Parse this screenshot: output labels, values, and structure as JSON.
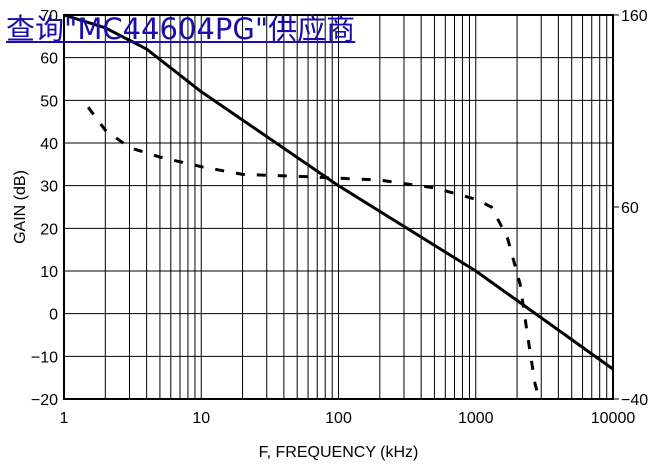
{
  "link_text": "查询\"MC44604PG\"供应商",
  "chart_data": {
    "type": "line",
    "xlabel": "F, FREQUENCY (kHz)",
    "ylabel": "GAIN (dB)",
    "x_scale": "log",
    "xlim": [
      1,
      10000
    ],
    "ylim": [
      -20,
      70
    ],
    "y2lim": [
      -40,
      160
    ],
    "grid": true,
    "x_ticks": [
      {
        "value": 1,
        "label": "1"
      },
      {
        "value": 10,
        "label": "10"
      },
      {
        "value": 100,
        "label": "100"
      },
      {
        "value": 1000,
        "label": "1000"
      },
      {
        "value": 10000,
        "label": "10000"
      }
    ],
    "y_ticks": [
      {
        "value": -20,
        "label": "−20"
      },
      {
        "value": -10,
        "label": "−10"
      },
      {
        "value": 0,
        "label": "0"
      },
      {
        "value": 10,
        "label": "10"
      },
      {
        "value": 20,
        "label": "20"
      },
      {
        "value": 30,
        "label": "30"
      },
      {
        "value": 40,
        "label": "40"
      },
      {
        "value": 50,
        "label": "50"
      },
      {
        "value": 60,
        "label": "60"
      },
      {
        "value": 70,
        "label": "70"
      }
    ],
    "y2_ticks": [
      {
        "value": 160,
        "label": "160"
      },
      {
        "value": 60,
        "label": "60"
      },
      {
        "value": -40,
        "label": "−40"
      }
    ],
    "series": [
      {
        "style": "solid",
        "axis": "left",
        "points": [
          [
            1,
            70
          ],
          [
            2,
            67
          ],
          [
            4,
            62
          ],
          [
            10,
            52
          ],
          [
            100,
            30
          ],
          [
            1000,
            10
          ],
          [
            10000,
            -13
          ]
        ]
      },
      {
        "style": "dashed",
        "axis": "right",
        "points": [
          [
            1.5,
            112
          ],
          [
            2,
            100
          ],
          [
            3,
            91
          ],
          [
            5,
            86
          ],
          [
            10,
            81
          ],
          [
            20,
            77
          ],
          [
            50,
            76
          ],
          [
            100,
            75
          ],
          [
            200,
            74
          ],
          [
            500,
            70
          ],
          [
            1000,
            64
          ],
          [
            1300,
            60
          ],
          [
            1700,
            44
          ],
          [
            2100,
            20
          ],
          [
            2400,
            -8
          ],
          [
            2700,
            -32
          ],
          [
            2900,
            -40
          ]
        ]
      }
    ]
  }
}
